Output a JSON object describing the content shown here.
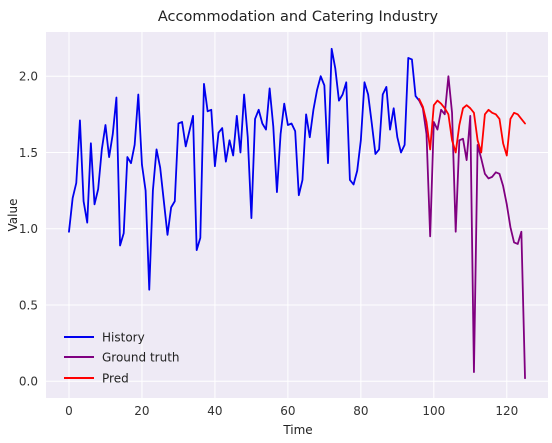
{
  "chart_data": {
    "type": "line",
    "title": "Accommodation and Catering Industry",
    "xlabel": "Time",
    "ylabel": "Value",
    "xlim": [
      -6.3,
      131.3
    ],
    "ylim": [
      -0.11,
      2.29
    ],
    "xticks": [
      0,
      20,
      40,
      60,
      80,
      100,
      120
    ],
    "yticks": [
      0.0,
      0.5,
      1.0,
      1.5,
      2.0
    ],
    "xtick_labels": [
      "0",
      "20",
      "40",
      "60",
      "80",
      "100",
      "120"
    ],
    "ytick_labels": [
      "0.0",
      "0.5",
      "1.0",
      "1.5",
      "2.0"
    ],
    "grid": true,
    "legend_position": "lower-left",
    "series": [
      {
        "name": "History",
        "color": "#0000ee",
        "x": [
          0,
          1,
          2,
          3,
          4,
          5,
          6,
          7,
          8,
          9,
          10,
          11,
          12,
          13,
          14,
          15,
          16,
          17,
          18,
          19,
          20,
          21,
          22,
          23,
          24,
          25,
          26,
          27,
          28,
          29,
          30,
          31,
          32,
          33,
          34,
          35,
          36,
          37,
          38,
          39,
          40,
          41,
          42,
          43,
          44,
          45,
          46,
          47,
          48,
          49,
          50,
          51,
          52,
          53,
          54,
          55,
          56,
          57,
          58,
          59,
          60,
          61,
          62,
          63,
          64,
          65,
          66,
          67,
          68,
          69,
          70,
          71,
          72,
          73,
          74,
          75,
          76,
          77,
          78,
          79,
          80,
          81,
          82,
          83,
          84,
          85,
          86,
          87,
          88,
          89,
          90,
          91,
          92,
          93,
          94,
          95,
          96
        ],
        "y": [
          0.98,
          1.2,
          1.3,
          1.71,
          1.18,
          1.04,
          1.56,
          1.16,
          1.26,
          1.52,
          1.68,
          1.47,
          1.62,
          1.86,
          0.89,
          0.97,
          1.47,
          1.43,
          1.55,
          1.88,
          1.42,
          1.25,
          0.6,
          1.25,
          1.52,
          1.4,
          1.18,
          0.96,
          1.14,
          1.18,
          1.69,
          1.7,
          1.54,
          1.64,
          1.74,
          0.86,
          0.94,
          1.95,
          1.77,
          1.78,
          1.41,
          1.63,
          1.66,
          1.44,
          1.58,
          1.48,
          1.74,
          1.5,
          1.88,
          1.6,
          1.07,
          1.72,
          1.78,
          1.69,
          1.65,
          1.92,
          1.67,
          1.24,
          1.62,
          1.82,
          1.68,
          1.69,
          1.64,
          1.22,
          1.32,
          1.75,
          1.6,
          1.78,
          1.91,
          2.0,
          1.94,
          1.43,
          2.18,
          2.05,
          1.84,
          1.88,
          1.96,
          1.32,
          1.29,
          1.38,
          1.58,
          1.96,
          1.88,
          1.69,
          1.49,
          1.52,
          1.88,
          1.93,
          1.65,
          1.79,
          1.6,
          1.5,
          1.55,
          2.12,
          2.11,
          1.87,
          1.84
        ]
      },
      {
        "name": "Ground truth",
        "color": "#800080",
        "x": [
          96,
          97,
          98,
          99,
          100,
          101,
          102,
          103,
          104,
          105,
          106,
          107,
          108,
          109,
          110,
          111,
          112,
          113,
          114,
          115,
          116,
          117,
          118,
          119,
          120,
          121,
          122,
          123,
          124,
          125
        ],
        "y": [
          1.84,
          1.79,
          1.62,
          0.95,
          1.7,
          1.65,
          1.78,
          1.75,
          2.0,
          1.76,
          0.98,
          1.58,
          1.59,
          1.45,
          1.74,
          0.06,
          1.55,
          1.46,
          1.36,
          1.33,
          1.34,
          1.37,
          1.36,
          1.28,
          1.16,
          1.01,
          0.91,
          0.9,
          0.98,
          0.02
        ]
      },
      {
        "name": "Pred",
        "color": "#ff0000",
        "x": [
          96,
          97,
          98,
          99,
          100,
          101,
          102,
          103,
          104,
          105,
          106,
          107,
          108,
          109,
          110,
          111,
          112,
          113,
          114,
          115,
          116,
          117,
          118,
          119,
          120,
          121,
          122,
          123,
          124,
          125
        ],
        "y": [
          1.85,
          1.8,
          1.7,
          1.52,
          1.81,
          1.84,
          1.82,
          1.79,
          1.75,
          1.58,
          1.5,
          1.68,
          1.79,
          1.81,
          1.79,
          1.76,
          1.58,
          1.5,
          1.75,
          1.78,
          1.76,
          1.75,
          1.72,
          1.56,
          1.48,
          1.72,
          1.76,
          1.75,
          1.72,
          1.69
        ]
      }
    ]
  }
}
